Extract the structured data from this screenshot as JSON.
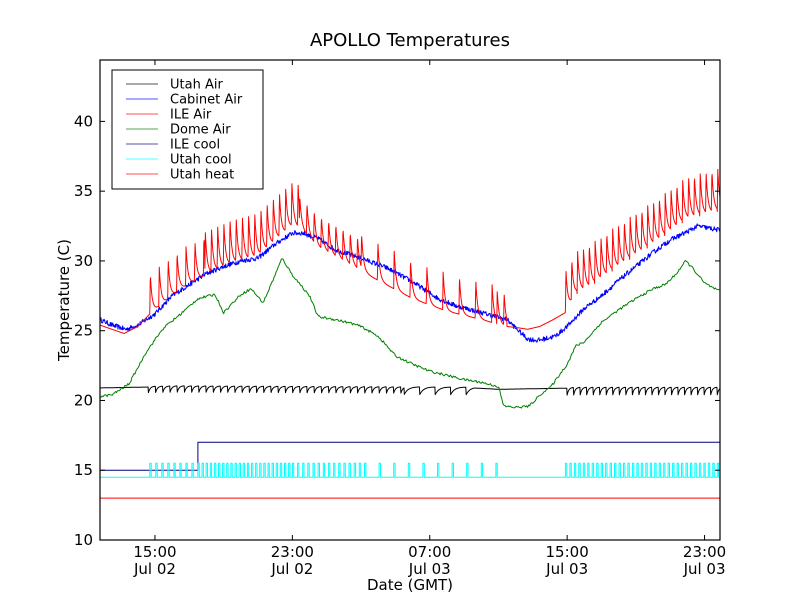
{
  "chart_data": {
    "type": "line",
    "title": "APOLLO Temperatures",
    "xlabel": "Date (GMT)",
    "ylabel": "Temperature (C)",
    "x_units": "hours since 00:00 Jul 02 (GMT)",
    "xlim": [
      11.8,
      47.9
    ],
    "ylim": [
      10,
      44.4
    ],
    "yticks": [
      10,
      15,
      20,
      25,
      30,
      35,
      40
    ],
    "xticks": [
      {
        "value": 15,
        "label": [
          "15:00",
          "Jul 02"
        ]
      },
      {
        "value": 23,
        "label": [
          "23:00",
          "Jul 02"
        ]
      },
      {
        "value": 31,
        "label": [
          "07:00",
          "Jul 03"
        ]
      },
      {
        "value": 39,
        "label": [
          "15:00",
          "Jul 03"
        ]
      },
      {
        "value": 47,
        "label": [
          "23:00",
          "Jul 03"
        ]
      }
    ],
    "grid": false,
    "legend": {
      "placement": "top-left"
    },
    "series": [
      {
        "name": "Utah Air",
        "color": "#000000",
        "style": "sawtooth",
        "base": [
          [
            11.8,
            20.9
          ],
          [
            16.3,
            21.0
          ],
          [
            33.5,
            20.9
          ],
          [
            35.0,
            20.8
          ],
          [
            40.0,
            20.9
          ],
          [
            47.9,
            20.9
          ]
        ],
        "sawtooth": [
          {
            "from": 14.6,
            "to": 29.5,
            "period": 0.42,
            "amp": 0.55
          },
          {
            "from": 29.5,
            "to": 33.6,
            "period": 0.9,
            "amp": 0.6
          },
          {
            "from": 39.0,
            "to": 47.9,
            "period": 0.38,
            "amp": 0.55
          }
        ]
      },
      {
        "name": "Cabinet Air",
        "color": "#0000ff",
        "style": "noisy",
        "points": [
          [
            11.8,
            25.8
          ],
          [
            12.5,
            25.4
          ],
          [
            13.3,
            25.1
          ],
          [
            14.0,
            25.4
          ],
          [
            15.0,
            26.2
          ],
          [
            16.0,
            27.5
          ],
          [
            17.0,
            28.3
          ],
          [
            18.0,
            29.1
          ],
          [
            19.0,
            29.6
          ],
          [
            20.0,
            30.0
          ],
          [
            21.0,
            30.2
          ],
          [
            22.0,
            31.2
          ],
          [
            23.0,
            32.0
          ],
          [
            23.6,
            32.0
          ],
          [
            24.5,
            31.6
          ],
          [
            25.5,
            30.8
          ],
          [
            27.0,
            30.2
          ],
          [
            28.5,
            29.5
          ],
          [
            30.0,
            28.5
          ],
          [
            31.5,
            27.3
          ],
          [
            32.5,
            26.8
          ],
          [
            34.0,
            26.3
          ],
          [
            35.5,
            25.8
          ],
          [
            36.0,
            25.2
          ],
          [
            36.7,
            24.4
          ],
          [
            37.3,
            24.3
          ],
          [
            38.3,
            24.6
          ],
          [
            39.0,
            25.3
          ],
          [
            40.0,
            26.6
          ],
          [
            41.0,
            27.5
          ],
          [
            42.0,
            28.6
          ],
          [
            43.0,
            29.6
          ],
          [
            44.0,
            30.6
          ],
          [
            45.0,
            31.5
          ],
          [
            46.0,
            32.1
          ],
          [
            46.6,
            32.5
          ],
          [
            47.9,
            32.2
          ]
        ]
      },
      {
        "name": "ILE Air",
        "color": "#ff0000",
        "style": "spikes",
        "base": [
          [
            11.8,
            25.4
          ],
          [
            12.5,
            25.1
          ],
          [
            13.2,
            24.8
          ],
          [
            14.0,
            25.3
          ],
          [
            14.7,
            26.2
          ],
          [
            15.5,
            27.0
          ],
          [
            16.5,
            28.0
          ],
          [
            18.0,
            29.0
          ],
          [
            19.5,
            29.8
          ],
          [
            21.0,
            30.3
          ],
          [
            22.0,
            31.4
          ],
          [
            23.0,
            32.5
          ],
          [
            23.5,
            32.3
          ],
          [
            24.5,
            31.0
          ],
          [
            26.0,
            30.0
          ],
          [
            28.0,
            28.6
          ],
          [
            30.0,
            27.3
          ],
          [
            32.0,
            26.4
          ],
          [
            34.0,
            25.8
          ],
          [
            35.5,
            25.3
          ],
          [
            36.2,
            25.2
          ],
          [
            36.7,
            25.1
          ],
          [
            37.4,
            25.3
          ],
          [
            38.2,
            25.8
          ],
          [
            38.9,
            26.3
          ],
          [
            39.5,
            27.6
          ],
          [
            40.5,
            28.3
          ],
          [
            42.0,
            29.6
          ],
          [
            44.0,
            31.2
          ],
          [
            46.0,
            33.0
          ],
          [
            47.9,
            33.6
          ]
        ],
        "spikes": [
          {
            "from": 14.7,
            "to": 17.9,
            "period": 0.52,
            "peak_offset": 2.8
          },
          {
            "from": 17.9,
            "to": 23.4,
            "period": 0.36,
            "peak_offset": 3.2
          },
          {
            "from": 23.4,
            "to": 27.0,
            "period": 0.42,
            "peak_offset": 2.3
          },
          {
            "from": 27.0,
            "to": 34.9,
            "period": 0.95,
            "peak_offset": 2.7
          },
          {
            "from": 34.9,
            "to": 35.5,
            "period": 0.4,
            "peak_offset": 2.3
          },
          {
            "from": 38.9,
            "to": 47.9,
            "period": 0.34,
            "peak_offset": 3.0
          }
        ]
      },
      {
        "name": "Dome Air",
        "color": "#008000",
        "style": "wobbly",
        "points": [
          [
            11.8,
            20.3
          ],
          [
            12.5,
            20.4
          ],
          [
            13.5,
            21.2
          ],
          [
            14.5,
            23.5
          ],
          [
            15.5,
            25.2
          ],
          [
            16.5,
            26.2
          ],
          [
            17.5,
            27.3
          ],
          [
            18.5,
            27.6
          ],
          [
            19.0,
            26.3
          ],
          [
            20.0,
            27.6
          ],
          [
            20.6,
            28.0
          ],
          [
            21.3,
            27.0
          ],
          [
            22.0,
            29.0
          ],
          [
            22.4,
            30.2
          ],
          [
            23.0,
            29.0
          ],
          [
            24.0,
            27.5
          ],
          [
            24.5,
            26.0
          ],
          [
            25.5,
            25.8
          ],
          [
            26.5,
            25.5
          ],
          [
            27.0,
            25.3
          ],
          [
            28.0,
            24.6
          ],
          [
            29.0,
            23.2
          ],
          [
            30.0,
            22.6
          ],
          [
            31.0,
            22.1
          ],
          [
            32.0,
            21.8
          ],
          [
            33.0,
            21.5
          ],
          [
            34.0,
            21.3
          ],
          [
            35.0,
            21.0
          ],
          [
            35.3,
            19.6
          ],
          [
            36.0,
            19.5
          ],
          [
            36.8,
            19.6
          ],
          [
            37.5,
            20.5
          ],
          [
            38.0,
            20.9
          ],
          [
            39.0,
            22.6
          ],
          [
            39.5,
            23.9
          ],
          [
            40.0,
            24.2
          ],
          [
            41.0,
            25.6
          ],
          [
            42.0,
            26.5
          ],
          [
            43.0,
            27.3
          ],
          [
            44.0,
            28.0
          ],
          [
            44.7,
            28.3
          ],
          [
            45.3,
            29.0
          ],
          [
            45.9,
            30.0
          ],
          [
            46.3,
            29.5
          ],
          [
            47.0,
            28.4
          ],
          [
            47.9,
            27.8
          ]
        ]
      },
      {
        "name": "ILE cool",
        "color": "#000080",
        "style": "step",
        "points": [
          [
            11.8,
            15.0
          ],
          [
            17.5,
            15.0
          ],
          [
            17.5,
            17.0
          ],
          [
            47.9,
            17.0
          ]
        ]
      },
      {
        "name": "Utah cool",
        "color": "#00ffff",
        "style": "pulses",
        "base": 14.5,
        "high": 15.5,
        "pulses": [
          {
            "from": 14.7,
            "to": 17.5,
            "period": 0.35
          },
          {
            "from": 17.5,
            "to": 23.0,
            "period": 0.24
          },
          {
            "from": 23.0,
            "to": 27.2,
            "period": 0.3
          },
          {
            "from": 27.2,
            "to": 34.9,
            "period": 0.85
          },
          {
            "from": 38.9,
            "to": 47.9,
            "period": 0.26
          }
        ]
      },
      {
        "name": "Utah heat",
        "color": "#ff0000",
        "style": "flat",
        "points": [
          [
            11.8,
            13.0
          ],
          [
            47.9,
            13.0
          ]
        ]
      }
    ]
  }
}
